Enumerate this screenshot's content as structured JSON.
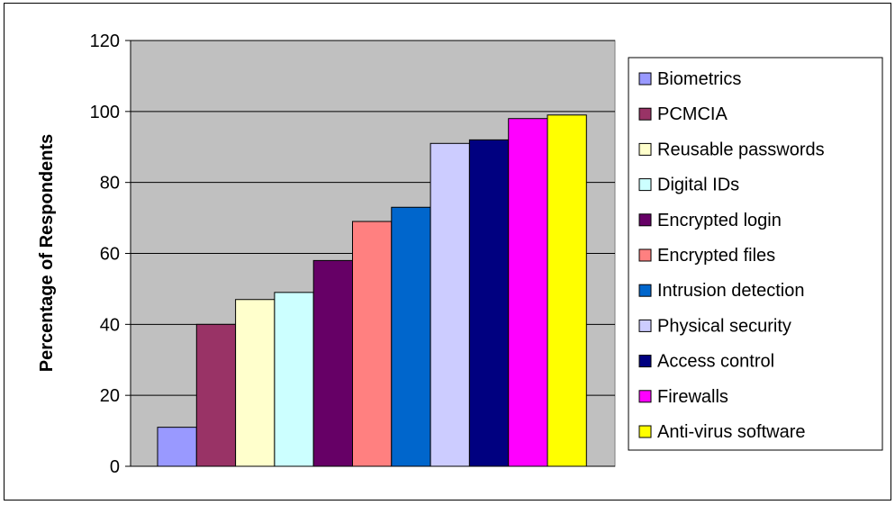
{
  "chart_data": {
    "type": "bar",
    "title": "",
    "xlabel": "",
    "ylabel": "Percentage of Respondents",
    "ylim": [
      0,
      120
    ],
    "yticks": [
      0,
      20,
      40,
      60,
      80,
      100,
      120
    ],
    "grid": true,
    "legend_position": "right",
    "plot_background": "#c0c0c0",
    "series": [
      {
        "name": "Biometrics",
        "value": 11,
        "color": "#9999ff"
      },
      {
        "name": "PCMCIA",
        "value": 40,
        "color": "#993366"
      },
      {
        "name": "Reusable passwords",
        "value": 47,
        "color": "#ffffcc"
      },
      {
        "name": "Digital IDs",
        "value": 49,
        "color": "#ccffff"
      },
      {
        "name": "Encrypted login",
        "value": 58,
        "color": "#660066"
      },
      {
        "name": "Encrypted files",
        "value": 69,
        "color": "#ff8080"
      },
      {
        "name": "Intrusion detection",
        "value": 73,
        "color": "#0066cc"
      },
      {
        "name": "Physical security",
        "value": 91,
        "color": "#ccccff"
      },
      {
        "name": "Access control",
        "value": 92,
        "color": "#000080"
      },
      {
        "name": "Firewalls",
        "value": 98,
        "color": "#ff00ff"
      },
      {
        "name": "Anti-virus software",
        "value": 99,
        "color": "#ffff00"
      }
    ]
  }
}
